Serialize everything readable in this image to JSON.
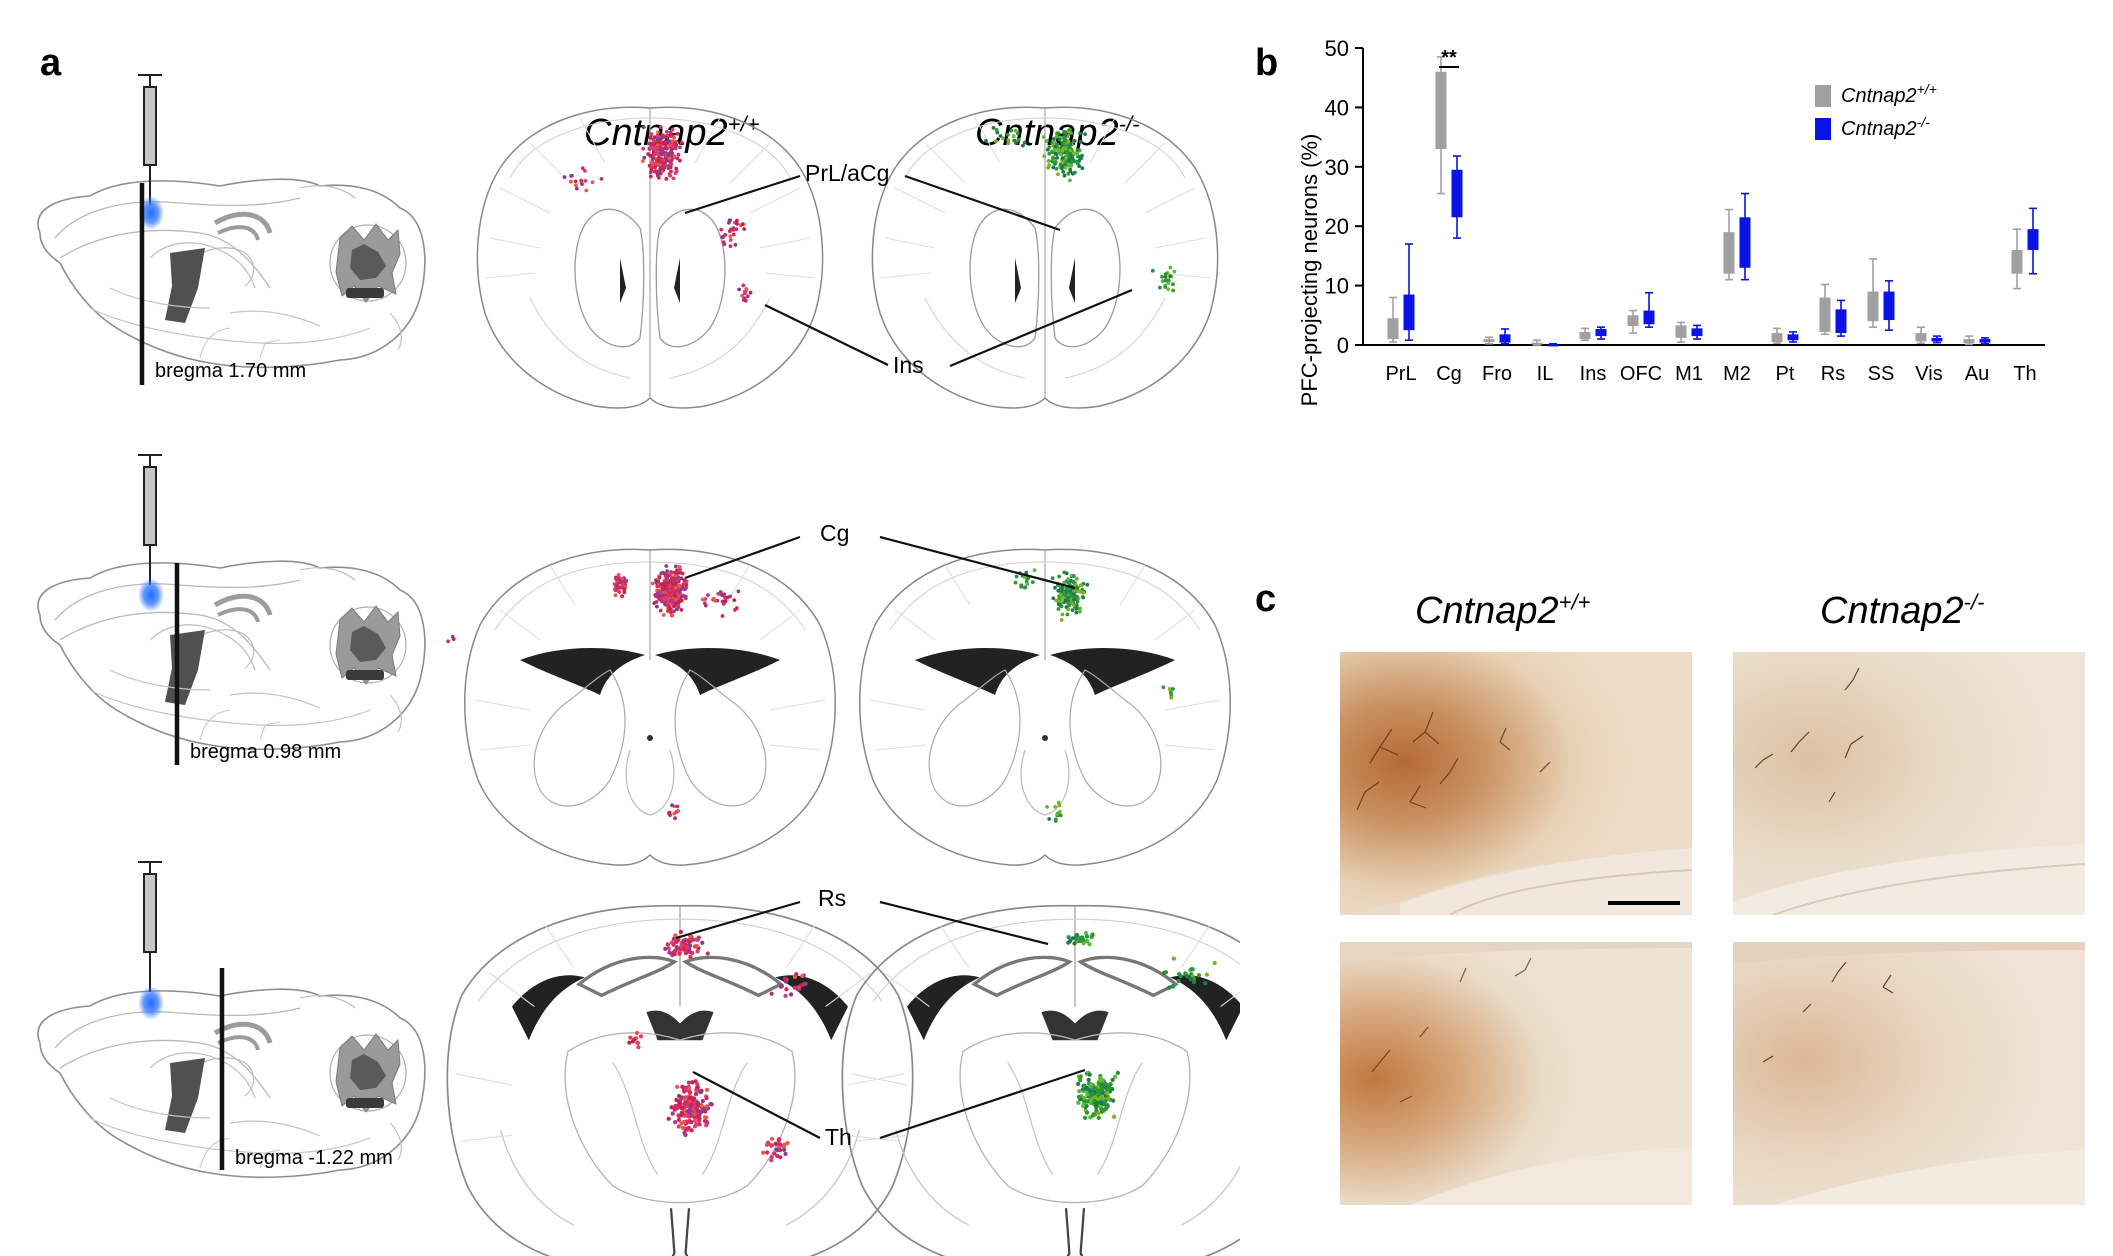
{
  "panels": {
    "a": {
      "letter": "a"
    },
    "b": {
      "letter": "b"
    },
    "c": {
      "letter": "c"
    }
  },
  "genotypes": {
    "wt": {
      "base": "Cntnap2",
      "sup": "+/+"
    },
    "ko": {
      "base": "Cntnap2",
      "sup": "-/-"
    }
  },
  "sections": [
    {
      "bregma": "bregma 1.70 mm"
    },
    {
      "bregma": "bregma 0.98 mm"
    },
    {
      "bregma": "bregma -1.22 mm"
    }
  ],
  "region_labels": {
    "prl_acg": "PrL/aCg",
    "ins": "Ins",
    "cg": "Cg",
    "rs": "Rs",
    "th": "Th"
  },
  "colors": {
    "wt_box": "#a0a0a0",
    "ko_box": "#0a14e6",
    "wt_dots": "#d8285a",
    "ko_dots": "#2f9a2a",
    "injection": "#1a6cff"
  },
  "chart_data": {
    "type": "box",
    "ylabel": "PFC-projecting neurons (%)",
    "ylim": [
      0,
      50
    ],
    "yticks": [
      0,
      10,
      20,
      30,
      40,
      50
    ],
    "categories": [
      "PrL",
      "Cg",
      "Fro",
      "IL",
      "Ins",
      "OFC",
      "M1",
      "M2",
      "Pt",
      "Rs",
      "SS",
      "Vis",
      "Au",
      "Th"
    ],
    "legend_position": "top-right",
    "significance": [
      {
        "category": "Cg",
        "label": "**"
      }
    ],
    "series": [
      {
        "name": "Cntnap2+/+",
        "legend": {
          "base": "Cntnap2",
          "sup": "+/+"
        },
        "color": "#a0a0a0",
        "boxes": [
          [
            0.5,
            1.0,
            4.5,
            8.0
          ],
          [
            25.5,
            33.0,
            46.0,
            48.5
          ],
          [
            0.2,
            0.5,
            1.0,
            1.3
          ],
          [
            0.0,
            0.1,
            0.4,
            0.8
          ],
          [
            0.8,
            1.0,
            2.2,
            2.8
          ],
          [
            2.0,
            3.2,
            5.0,
            5.8
          ],
          [
            0.5,
            1.2,
            3.3,
            3.8
          ],
          [
            11.0,
            12.0,
            19.0,
            22.8
          ],
          [
            0.3,
            0.5,
            2.0,
            2.8
          ],
          [
            1.8,
            2.2,
            8.0,
            10.2
          ],
          [
            3.0,
            4.0,
            9.0,
            14.5
          ],
          [
            0.3,
            0.6,
            2.0,
            3.0
          ],
          [
            0.1,
            0.3,
            1.0,
            1.5
          ],
          [
            9.5,
            12.0,
            16.0,
            19.5
          ]
        ]
      },
      {
        "name": "Cntnap2-/-",
        "legend": {
          "base": "Cntnap2",
          "sup": "-/-"
        },
        "color": "#0a14e6",
        "boxes": [
          [
            0.8,
            2.5,
            8.5,
            17.0
          ],
          [
            18.0,
            21.5,
            29.5,
            31.8
          ],
          [
            0.2,
            0.4,
            1.8,
            2.7
          ],
          [
            0.0,
            0.0,
            0.1,
            0.2
          ],
          [
            1.0,
            1.5,
            2.7,
            3.0
          ],
          [
            3.0,
            3.5,
            5.8,
            8.8
          ],
          [
            1.0,
            1.5,
            2.8,
            3.3
          ],
          [
            11.0,
            13.0,
            21.5,
            25.5
          ],
          [
            0.5,
            0.8,
            1.8,
            2.2
          ],
          [
            1.5,
            2.0,
            6.0,
            7.5
          ],
          [
            2.5,
            4.2,
            9.0,
            10.8
          ],
          [
            0.4,
            0.6,
            1.2,
            1.5
          ],
          [
            0.2,
            0.4,
            1.0,
            1.2
          ],
          [
            12.0,
            16.0,
            19.5,
            23.0
          ]
        ]
      }
    ]
  }
}
